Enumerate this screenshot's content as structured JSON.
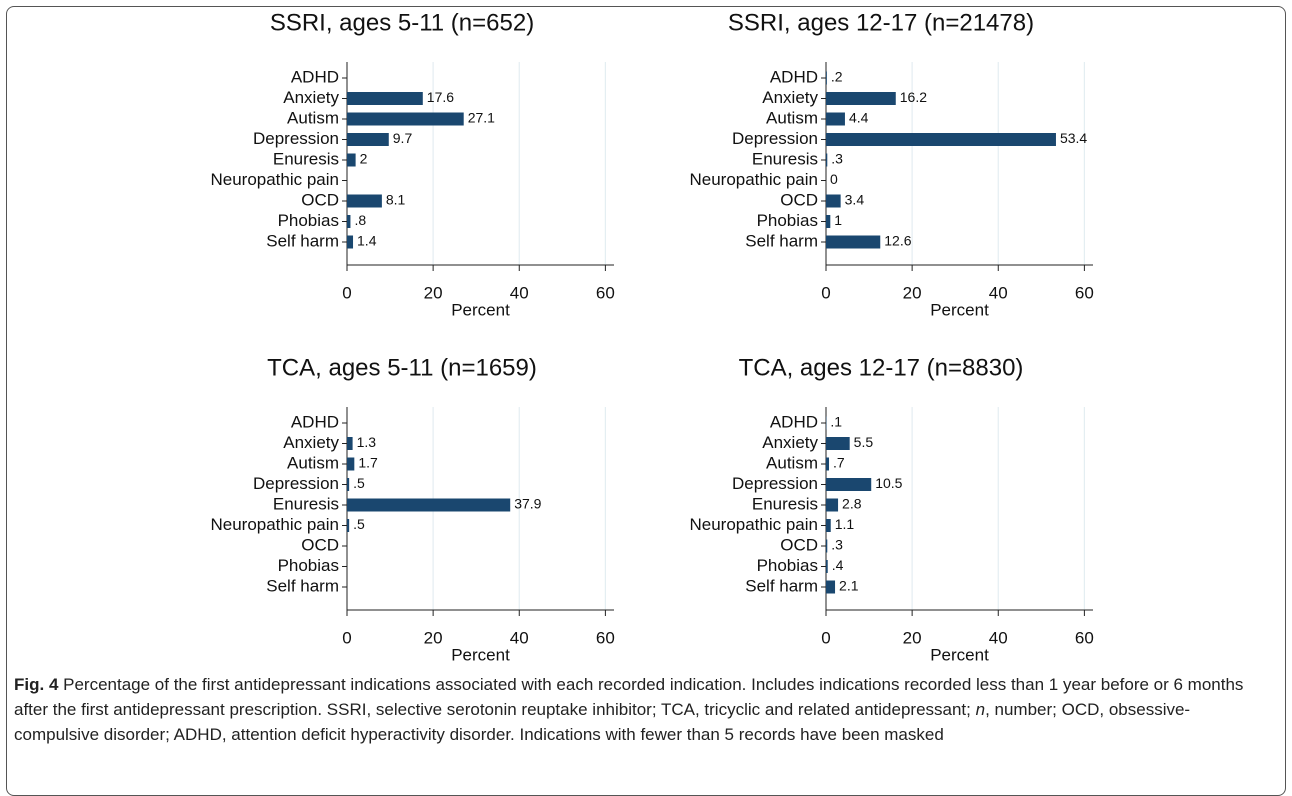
{
  "chart_data": [
    {
      "type": "bar",
      "orientation": "horizontal",
      "title": "SSRI, ages 5-11 (n=652)",
      "xlabel": "Percent",
      "color": "#1a476f",
      "grid": true,
      "categories": [
        "ADHD",
        "Anxiety",
        "Autism",
        "Depression",
        "Enuresis",
        "Neuropathic pain",
        "OCD",
        "Phobias",
        "Self harm"
      ],
      "values": [
        null,
        17.6,
        27.1,
        9.7,
        2,
        null,
        8.1,
        0.8,
        1.4
      ],
      "value_labels": [
        null,
        "17.6",
        "27.1",
        "9.7",
        "2",
        null,
        "8.1",
        ".8",
        "1.4"
      ],
      "xlim": [
        0,
        62
      ],
      "xticks": [
        0,
        20,
        40,
        60
      ]
    },
    {
      "type": "bar",
      "orientation": "horizontal",
      "title": "SSRI, ages 12-17 (n=21478)",
      "xlabel": "Percent",
      "color": "#1a476f",
      "grid": true,
      "categories": [
        "ADHD",
        "Anxiety",
        "Autism",
        "Depression",
        "Enuresis",
        "Neuropathic pain",
        "OCD",
        "Phobias",
        "Self harm"
      ],
      "values": [
        0.2,
        16.2,
        4.4,
        53.4,
        0.3,
        0,
        3.4,
        1,
        12.6
      ],
      "value_labels": [
        ".2",
        "16.2",
        "4.4",
        "53.4",
        ".3",
        "0",
        "3.4",
        "1",
        "12.6"
      ],
      "xlim": [
        0,
        62
      ],
      "xticks": [
        0,
        20,
        40,
        60
      ]
    },
    {
      "type": "bar",
      "orientation": "horizontal",
      "title": "TCA, ages 5-11 (n=1659)",
      "xlabel": "Percent",
      "color": "#1a476f",
      "grid": true,
      "categories": [
        "ADHD",
        "Anxiety",
        "Autism",
        "Depression",
        "Enuresis",
        "Neuropathic pain",
        "OCD",
        "Phobias",
        "Self harm"
      ],
      "values": [
        null,
        1.3,
        1.7,
        0.5,
        37.9,
        0.5,
        null,
        null,
        null
      ],
      "value_labels": [
        null,
        "1.3",
        "1.7",
        ".5",
        "37.9",
        ".5",
        null,
        null,
        null
      ],
      "xlim": [
        0,
        62
      ],
      "xticks": [
        0,
        20,
        40,
        60
      ]
    },
    {
      "type": "bar",
      "orientation": "horizontal",
      "title": "TCA, ages 12-17 (n=8830)",
      "xlabel": "Percent",
      "color": "#1a476f",
      "grid": true,
      "categories": [
        "ADHD",
        "Anxiety",
        "Autism",
        "Depression",
        "Enuresis",
        "Neuropathic pain",
        "OCD",
        "Phobias",
        "Self harm"
      ],
      "values": [
        0.1,
        5.5,
        0.7,
        10.5,
        2.8,
        1.1,
        0.3,
        0.4,
        2.1
      ],
      "value_labels": [
        ".1",
        "5.5",
        ".7",
        "10.5",
        "2.8",
        "1.1",
        ".3",
        ".4",
        "2.1"
      ],
      "xlim": [
        0,
        62
      ],
      "xticks": [
        0,
        20,
        40,
        60
      ]
    }
  ],
  "caption": {
    "label": "Fig. 4",
    "parts": [
      " Percentage of the first antidepressant indications associated with each recorded indication. Includes indications recorded less than 1 year before or 6 months after the first antidepressant prescription. SSRI, selective serotonin reuptake inhibitor; TCA, tricyclic and related antidepressant; ",
      "n",
      ", number; OCD, obsessive-compulsive disorder; ADHD, attention deficit hyperactivity disorder. Indications with fewer than 5 records have been masked"
    ]
  }
}
